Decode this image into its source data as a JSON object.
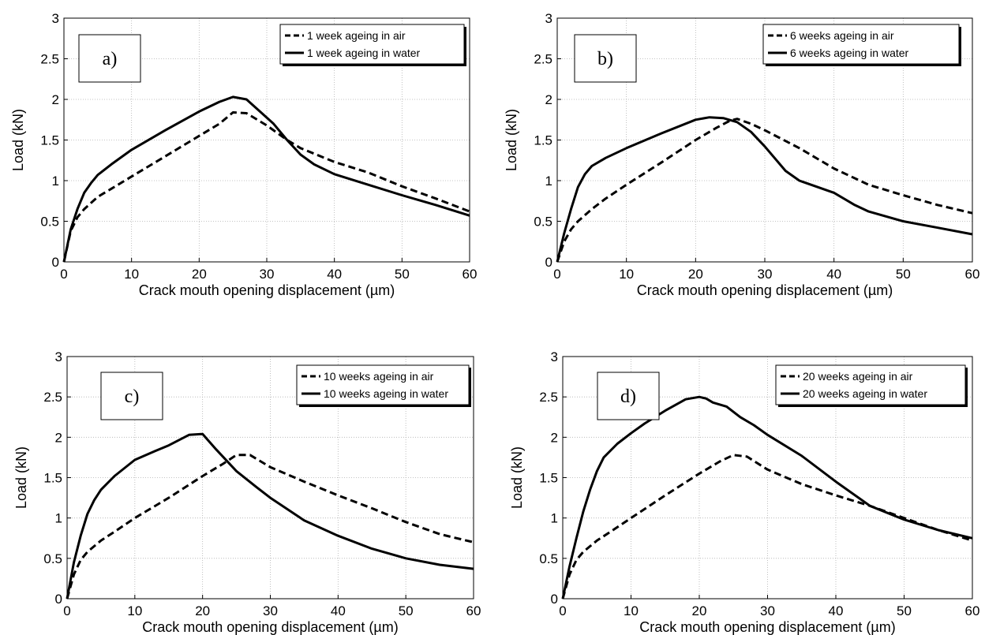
{
  "chart_data": [
    {
      "type": "line",
      "panel_label": "a)",
      "xlabel": "Crack mouth opening displacement (µm)",
      "ylabel": "Load (kN)",
      "xlim": [
        0,
        60
      ],
      "ylim": [
        0,
        3
      ],
      "xticks": [
        "0",
        "10",
        "20",
        "30",
        "40",
        "50",
        "60"
      ],
      "yticks": [
        "0",
        "0.5",
        "1",
        "1.5",
        "2",
        "2.5",
        "3"
      ],
      "grid": true,
      "legend_position": "top-right",
      "series": [
        {
          "name": "1 week ageing in air",
          "style": "dashed",
          "x": [
            0,
            1,
            2,
            3,
            5,
            7,
            10,
            15,
            20,
            23,
            25,
            27,
            30,
            33,
            35,
            40,
            45,
            50,
            55,
            60
          ],
          "y": [
            0,
            0.38,
            0.55,
            0.65,
            0.8,
            0.9,
            1.05,
            1.3,
            1.55,
            1.7,
            1.84,
            1.83,
            1.68,
            1.5,
            1.4,
            1.23,
            1.1,
            0.93,
            0.78,
            0.62
          ]
        },
        {
          "name": "1 week ageing in water",
          "style": "solid",
          "x": [
            0,
            1,
            2,
            3,
            4,
            5,
            7,
            10,
            15,
            20,
            23,
            25,
            27,
            29,
            31,
            33,
            35,
            37,
            40,
            45,
            50,
            55,
            60
          ],
          "y": [
            0,
            0.4,
            0.65,
            0.85,
            0.97,
            1.07,
            1.2,
            1.38,
            1.62,
            1.85,
            1.97,
            2.03,
            2.0,
            1.85,
            1.7,
            1.5,
            1.32,
            1.2,
            1.08,
            0.95,
            0.82,
            0.7,
            0.57
          ]
        }
      ]
    },
    {
      "type": "line",
      "panel_label": "b)",
      "xlabel": "Crack mouth opening displacement (µm)",
      "ylabel": "Load (kN)",
      "xlim": [
        0,
        60
      ],
      "ylim": [
        0,
        3
      ],
      "xticks": [
        "0",
        "10",
        "20",
        "30",
        "40",
        "50",
        "60"
      ],
      "yticks": [
        "0",
        "0.5",
        "1",
        "1.5",
        "2",
        "2.5",
        "3"
      ],
      "grid": true,
      "legend_position": "top-right",
      "series": [
        {
          "name": "6 weeks ageing in air",
          "style": "dashed",
          "x": [
            0,
            1,
            2,
            3,
            5,
            7,
            10,
            15,
            20,
            23,
            25,
            26,
            28,
            30,
            35,
            40,
            45,
            50,
            55,
            60
          ],
          "y": [
            0,
            0.25,
            0.4,
            0.5,
            0.65,
            0.78,
            0.95,
            1.22,
            1.5,
            1.65,
            1.74,
            1.76,
            1.7,
            1.62,
            1.4,
            1.15,
            0.95,
            0.82,
            0.7,
            0.6
          ]
        },
        {
          "name": "6 weeks ageing in water",
          "style": "solid",
          "x": [
            0,
            1,
            2,
            3,
            4,
            5,
            7,
            10,
            15,
            20,
            22,
            24,
            26,
            28,
            30,
            33,
            35,
            40,
            43,
            45,
            50,
            55,
            60
          ],
          "y": [
            0,
            0.35,
            0.65,
            0.92,
            1.08,
            1.18,
            1.28,
            1.4,
            1.58,
            1.75,
            1.78,
            1.77,
            1.72,
            1.6,
            1.42,
            1.12,
            1.0,
            0.85,
            0.7,
            0.62,
            0.5,
            0.42,
            0.34
          ]
        }
      ]
    },
    {
      "type": "line",
      "panel_label": "c)",
      "xlabel": "Crack mouth opening displacement (µm)",
      "ylabel": "Load (kN)",
      "xlim": [
        0,
        60
      ],
      "ylim": [
        0,
        3
      ],
      "xticks": [
        "0",
        "10",
        "20",
        "30",
        "40",
        "50",
        "60"
      ],
      "yticks": [
        "0",
        "0.5",
        "1",
        "1.5",
        "2",
        "2.5",
        "3"
      ],
      "grid": true,
      "legend_position": "top-right",
      "series": [
        {
          "name": "10 weeks ageing in air",
          "style": "dashed",
          "x": [
            0,
            1,
            2,
            3,
            5,
            7,
            10,
            15,
            20,
            23,
            25,
            27,
            30,
            35,
            40,
            45,
            50,
            55,
            60
          ],
          "y": [
            0,
            0.3,
            0.48,
            0.58,
            0.72,
            0.83,
            1.0,
            1.25,
            1.52,
            1.67,
            1.78,
            1.78,
            1.63,
            1.45,
            1.28,
            1.12,
            0.95,
            0.8,
            0.7
          ]
        },
        {
          "name": "10 weeks ageing in water",
          "style": "solid",
          "x": [
            0,
            1,
            2,
            3,
            4,
            5,
            7,
            10,
            13,
            15,
            18,
            20,
            22,
            25,
            28,
            30,
            35,
            40,
            45,
            50,
            55,
            60
          ],
          "y": [
            0,
            0.45,
            0.78,
            1.05,
            1.22,
            1.35,
            1.52,
            1.72,
            1.83,
            1.9,
            2.03,
            2.04,
            1.85,
            1.58,
            1.38,
            1.25,
            0.97,
            0.78,
            0.62,
            0.5,
            0.42,
            0.37
          ]
        }
      ]
    },
    {
      "type": "line",
      "panel_label": "d)",
      "xlabel": "Crack mouth opening displacement (µm)",
      "ylabel": "Load (kN)",
      "xlim": [
        0,
        60
      ],
      "ylim": [
        0,
        3
      ],
      "xticks": [
        "0",
        "10",
        "20",
        "30",
        "40",
        "50",
        "60"
      ],
      "yticks": [
        "0",
        "0.5",
        "1",
        "1.5",
        "2",
        "2.5",
        "3"
      ],
      "grid": true,
      "legend_position": "top-right",
      "series": [
        {
          "name": "20 weeks ageing in air",
          "style": "dashed",
          "x": [
            0,
            1,
            2,
            3,
            5,
            7,
            10,
            15,
            20,
            23,
            25,
            27,
            30,
            35,
            40,
            45,
            50,
            55,
            60
          ],
          "y": [
            0,
            0.3,
            0.48,
            0.58,
            0.72,
            0.83,
            1.0,
            1.28,
            1.55,
            1.7,
            1.78,
            1.76,
            1.6,
            1.42,
            1.28,
            1.15,
            1.0,
            0.85,
            0.72
          ]
        },
        {
          "name": "20 weeks ageing in water",
          "style": "solid",
          "x": [
            0,
            1,
            2,
            3,
            4,
            5,
            6,
            8,
            10,
            12,
            15,
            18,
            20,
            21,
            22,
            24,
            26,
            28,
            30,
            35,
            40,
            45,
            50,
            55,
            60
          ],
          "y": [
            0,
            0.4,
            0.75,
            1.08,
            1.35,
            1.58,
            1.75,
            1.92,
            2.05,
            2.17,
            2.33,
            2.47,
            2.5,
            2.48,
            2.43,
            2.38,
            2.25,
            2.15,
            2.03,
            1.77,
            1.45,
            1.15,
            0.98,
            0.85,
            0.75
          ]
        }
      ]
    }
  ]
}
